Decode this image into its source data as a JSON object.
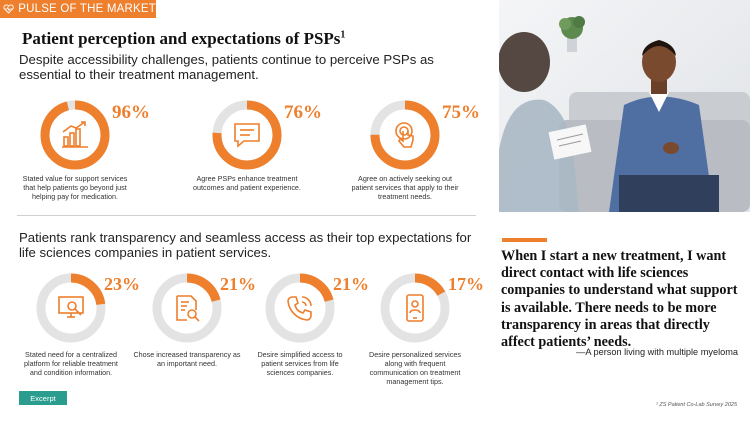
{
  "header": {
    "label": "PULSE OF THE MARKET"
  },
  "title": {
    "text": "Patient perception and expectations of PSPs",
    "sup": "1"
  },
  "subtitle": "Despite accessibility challenges, patients continue to perceive PSPs as essential to their treatment management.",
  "top_stats": [
    {
      "percent": "96%",
      "value": 96,
      "icon": "bar-chart-growth-icon",
      "caption": "Stated value for support services that help patients go beyond just helping pay for medication."
    },
    {
      "percent": "76%",
      "value": 76,
      "icon": "chat-message-icon",
      "caption": "Agree PSPs enhance treatment outcomes and patient experience."
    },
    {
      "percent": "75%",
      "value": 75,
      "icon": "touch-tap-icon",
      "caption": "Agree on actively seeking out patient services that apply to their treatment needs."
    }
  ],
  "section2_heading": "Patients rank transparency and seamless access as their top expectations for life sciences companies in patient services.",
  "bottom_stats": [
    {
      "percent": "23%",
      "value": 23,
      "icon": "monitor-search-icon",
      "caption": "Stated need for a centralized platform for reliable treatment and condition information."
    },
    {
      "percent": "21%",
      "value": 21,
      "icon": "document-search-icon",
      "caption": "Chose increased transparency as an important need."
    },
    {
      "percent": "21%",
      "value": 21,
      "icon": "phone-call-icon",
      "caption": "Desire simplified access to patient services from life sciences companies."
    },
    {
      "percent": "17%",
      "value": 17,
      "icon": "mobile-person-icon",
      "caption": "Desire personalized services along with frequent communication on treatment management tips."
    }
  ],
  "quote": {
    "text": "When I start a new treatment, I want direct contact with life sciences companies to understand what support is available. There needs to be more transparency in areas that directly affect patients’ needs.",
    "attribution": "—A person living with multiple myeloma"
  },
  "excerpt_label": "Excerpt",
  "source": "¹ ZS Patient Co-Lab Survey 2025",
  "colors": {
    "accent": "#ee7f2d",
    "ring_track": "#e3e3e3",
    "teal": "#2a9d8f"
  }
}
